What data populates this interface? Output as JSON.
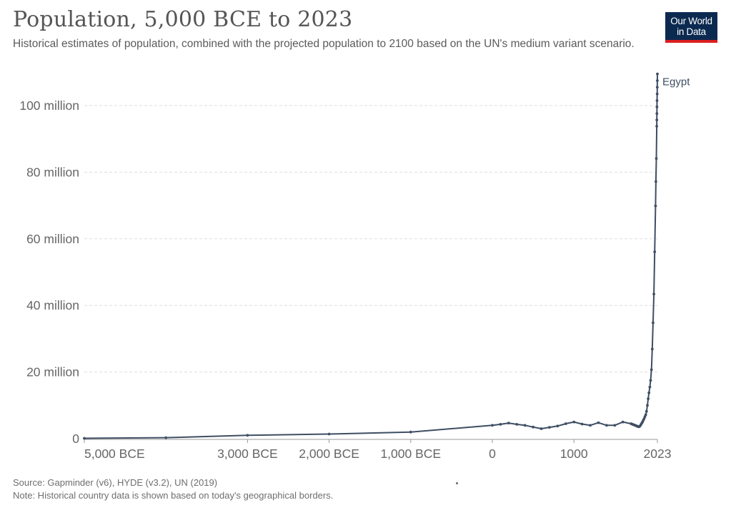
{
  "header": {
    "title": "Population, 5,000 BCE to 2023",
    "subtitle": "Historical estimates of population, combined with the projected population to 2100 based on the UN's medium variant scenario.",
    "logo_line1": "Our World",
    "logo_line2": "in Data"
  },
  "footer": {
    "source": "Source: Gapminder (v6), HYDE (v3.2), UN (2019)",
    "note": "Note: Historical country data is shown based on today's geographical borders."
  },
  "colors": {
    "series": "#3e4e63",
    "grid": "#dddddd",
    "axis": "#999999",
    "logo_bg": "#0c2a50",
    "logo_accent": "#dc1e1e"
  },
  "chart_data": {
    "type": "line",
    "xlim": [
      -5000,
      2023
    ],
    "ylim": [
      0,
      100000000
    ],
    "y_ticks": [
      {
        "value": 0,
        "label": "0"
      },
      {
        "value": 20000000,
        "label": "20 million"
      },
      {
        "value": 40000000,
        "label": "40 million"
      },
      {
        "value": 60000000,
        "label": "60 million"
      },
      {
        "value": 80000000,
        "label": "80 million"
      },
      {
        "value": 100000000,
        "label": "100 million"
      }
    ],
    "x_ticks": [
      {
        "value": -5000,
        "label": "5,000 BCE"
      },
      {
        "value": -3000,
        "label": "3,000 BCE"
      },
      {
        "value": -2000,
        "label": "2,000 BCE"
      },
      {
        "value": -1000,
        "label": "1,000 BCE"
      },
      {
        "value": 0,
        "label": "0"
      },
      {
        "value": 1000,
        "label": "1000"
      },
      {
        "value": 2023,
        "label": "2023"
      }
    ],
    "grid": "horizontal dashed",
    "series": [
      {
        "name": "Egypt",
        "x": [
          -5000,
          -4000,
          -3000,
          -2000,
          -1000,
          0,
          100,
          200,
          300,
          400,
          500,
          600,
          700,
          800,
          900,
          1000,
          1100,
          1200,
          1300,
          1400,
          1500,
          1600,
          1700,
          1710,
          1720,
          1730,
          1740,
          1750,
          1760,
          1770,
          1780,
          1790,
          1800,
          1810,
          1820,
          1830,
          1840,
          1850,
          1860,
          1870,
          1880,
          1890,
          1900,
          1910,
          1920,
          1930,
          1940,
          1950,
          1960,
          1970,
          1980,
          1990,
          2000,
          2005,
          2010,
          2015,
          2016,
          2017,
          2018,
          2019,
          2020,
          2021,
          2022,
          2023
        ],
        "y": [
          100000,
          300000,
          1000000,
          1400000,
          2000000,
          4000000,
          4300000,
          4700000,
          4300000,
          4000000,
          3500000,
          3000000,
          3400000,
          3800000,
          4500000,
          5000000,
          4400000,
          4000000,
          4800000,
          4000000,
          4000000,
          5000000,
          4500000,
          4400000,
          4300000,
          4200000,
          4100000,
          4000000,
          3900000,
          3800000,
          3700000,
          3600000,
          3600000,
          3800000,
          4200000,
          4600000,
          5000000,
          5500000,
          6000000,
          6600000,
          7200000,
          8200000,
          10000000,
          12000000,
          13800000,
          15500000,
          17500000,
          20700000,
          26900000,
          34800000,
          43400000,
          56100000,
          69900000,
          77200000,
          84100000,
          93800000,
          95700000,
          97600000,
          99600000,
          101500000,
          103500000,
          105500000,
          107500000,
          109500000
        ]
      }
    ]
  }
}
